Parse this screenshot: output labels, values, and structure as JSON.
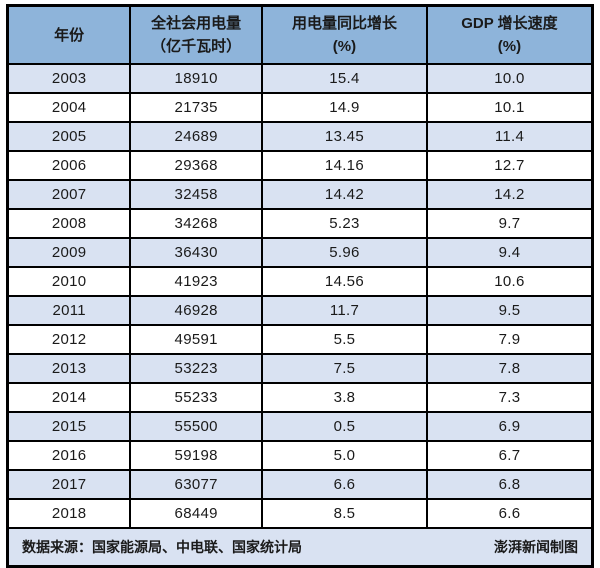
{
  "chart_data": {
    "type": "table",
    "columns": [
      "年份",
      "全社会用电量（亿千瓦时）",
      "用电量同比增长(%)",
      "GDP 增长速度(%)"
    ],
    "rows": [
      [
        "2003",
        "18910",
        "15.4",
        "10.0"
      ],
      [
        "2004",
        "21735",
        "14.9",
        "10.1"
      ],
      [
        "2005",
        "24689",
        "13.45",
        "11.4"
      ],
      [
        "2006",
        "29368",
        "14.16",
        "12.7"
      ],
      [
        "2007",
        "32458",
        "14.42",
        "14.2"
      ],
      [
        "2008",
        "34268",
        "5.23",
        "9.7"
      ],
      [
        "2009",
        "36430",
        "5.96",
        "9.4"
      ],
      [
        "2010",
        "41923",
        "14.56",
        "10.6"
      ],
      [
        "2011",
        "46928",
        "11.7",
        "9.5"
      ],
      [
        "2012",
        "49591",
        "5.5",
        "7.9"
      ],
      [
        "2013",
        "53223",
        "7.5",
        "7.8"
      ],
      [
        "2014",
        "55233",
        "3.8",
        "7.3"
      ],
      [
        "2015",
        "55500",
        "0.5",
        "6.9"
      ],
      [
        "2016",
        "59198",
        "5.0",
        "6.7"
      ],
      [
        "2017",
        "63077",
        "6.6",
        "6.8"
      ],
      [
        "2018",
        "68449",
        "8.5",
        "6.6"
      ]
    ],
    "source_note": "数据来源：国家能源局、中电联、国家统计局",
    "credit": "澎湃新闻制图"
  },
  "header": {
    "col1_line1": "年份",
    "col2_line1": "全社会用电量",
    "col2_line2": "（亿千瓦时）",
    "col3_line1": "用电量同比增长",
    "col3_line2": "(%)",
    "col4_line1": "GDP 增长速度",
    "col4_line2": "(%)"
  },
  "footer": {
    "source": "数据来源：国家能源局、中电联、国家统计局",
    "credit": "澎湃新闻制图"
  },
  "colors": {
    "header_bg": "#8EB4DA",
    "stripe_bg": "#D9E2F2",
    "row_bg": "#FFFFFF",
    "border": "#000000",
    "text": "#1A1A1A"
  }
}
